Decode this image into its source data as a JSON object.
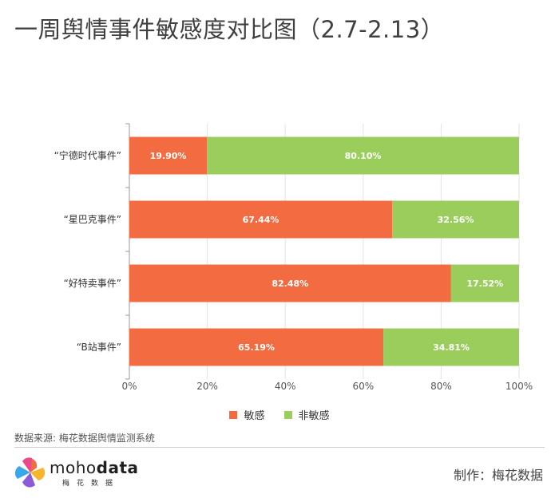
{
  "title": "一周舆情事件敏感度对比图（2.7-2.13）",
  "colors": {
    "sensitive": "#f26b41",
    "non_sensitive": "#9bcd5c"
  },
  "chart_data": {
    "type": "bar",
    "orientation": "horizontal",
    "stacked": true,
    "categories": [
      "“宁德时代事件”",
      "“星巴克事件”",
      "“好特卖事件”",
      "“B站事件”"
    ],
    "series": [
      {
        "name": "敏感",
        "values": [
          19.9,
          67.44,
          82.48,
          65.19
        ],
        "labels": [
          "19.90%",
          "67.44%",
          "82.48%",
          "65.19%"
        ]
      },
      {
        "name": "非敏感",
        "values": [
          80.1,
          32.56,
          17.52,
          34.81
        ],
        "labels": [
          "80.10%",
          "32.56%",
          "17.52%",
          "34.81%"
        ]
      }
    ],
    "xlim": [
      0,
      100
    ],
    "x_ticks": [
      "0%",
      "20%",
      "40%",
      "60%",
      "80%",
      "100%"
    ],
    "grid": true,
    "legend": "bottom-center"
  },
  "legend": {
    "sensitive": "敏感",
    "non_sensitive": "非敏感"
  },
  "source": "数据来源: 梅花数据舆情监测系统",
  "logo": {
    "word_light": "moho",
    "word_bold": "data",
    "sub": "梅花数据"
  },
  "credit": "制作：梅花数据"
}
